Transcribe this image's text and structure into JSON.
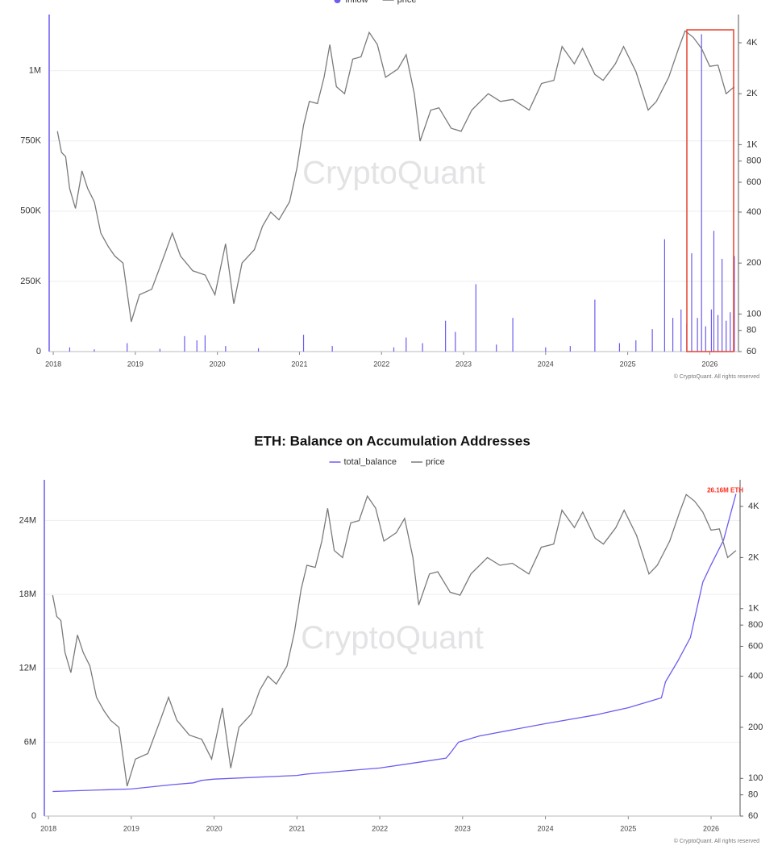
{
  "chart_data": [
    {
      "type": "combo",
      "series": [
        {
          "name": "inflow",
          "color": "#6c5cf0",
          "kind": "bar",
          "axis": "y",
          "x": [
            2018.2,
            2018.5,
            2018.9,
            2019.3,
            2019.6,
            2019.75,
            2019.85,
            2020.1,
            2020.5,
            2021.05,
            2021.4,
            2022.15,
            2022.3,
            2022.5,
            2022.78,
            2022.9,
            2023.15,
            2023.4,
            2023.6,
            2024.0,
            2024.3,
            2024.6,
            2024.9,
            2025.1,
            2025.3,
            2025.45,
            2025.55,
            2025.65,
            2025.72,
            2025.78,
            2025.85,
            2025.9,
            2025.95,
            2026.02,
            2026.05,
            2026.1,
            2026.15,
            2026.2,
            2026.25,
            2026.3
          ],
          "values": [
            15000,
            8000,
            30000,
            10000,
            55000,
            40000,
            58000,
            20000,
            12000,
            60000,
            20000,
            15000,
            50000,
            30000,
            110000,
            70000,
            240000,
            25000,
            120000,
            15000,
            20000,
            185000,
            30000,
            40000,
            80000,
            400000,
            120000,
            150000,
            100000,
            350000,
            120000,
            1130000,
            90000,
            150000,
            430000,
            130000,
            330000,
            110000,
            140000,
            340000
          ]
        },
        {
          "name": "price",
          "color": "#7a7a7a",
          "kind": "line",
          "axis": "y2",
          "x": [
            2018.05,
            2018.1,
            2018.15,
            2018.2,
            2018.27,
            2018.35,
            2018.42,
            2018.5,
            2018.58,
            2018.67,
            2018.75,
            2018.85,
            2018.95,
            2019.05,
            2019.2,
            2019.35,
            2019.45,
            2019.55,
            2019.7,
            2019.85,
            2019.97,
            2020.1,
            2020.2,
            2020.3,
            2020.45,
            2020.55,
            2020.65,
            2020.75,
            2020.88,
            2020.97,
            2021.05,
            2021.12,
            2021.22,
            2021.3,
            2021.37,
            2021.45,
            2021.55,
            2021.65,
            2021.75,
            2021.85,
            2021.95,
            2022.05,
            2022.2,
            2022.3,
            2022.4,
            2022.47,
            2022.6,
            2022.7,
            2022.85,
            2022.97,
            2023.1,
            2023.3,
            2023.45,
            2023.6,
            2023.8,
            2023.95,
            2024.1,
            2024.2,
            2024.35,
            2024.45,
            2024.6,
            2024.7,
            2024.85,
            2024.95,
            2025.1,
            2025.25,
            2025.35,
            2025.5,
            2025.62,
            2025.7,
            2025.8,
            2025.9,
            2026.0,
            2026.1,
            2026.2,
            2026.3
          ],
          "values": [
            1200,
            900,
            850,
            550,
            420,
            700,
            550,
            460,
            300,
            250,
            220,
            200,
            90,
            130,
            140,
            220,
            300,
            220,
            180,
            170,
            130,
            260,
            115,
            200,
            240,
            330,
            400,
            360,
            460,
            730,
            1300,
            1800,
            1750,
            2500,
            3900,
            2200,
            2000,
            3200,
            3300,
            4600,
            3900,
            2500,
            2800,
            3400,
            2000,
            1050,
            1600,
            1650,
            1250,
            1200,
            1600,
            2000,
            1800,
            1850,
            1600,
            2300,
            2400,
            3800,
            3000,
            3700,
            2600,
            2400,
            3000,
            3800,
            2700,
            1600,
            1800,
            2500,
            3700,
            4700,
            4300,
            3700,
            2900,
            2950,
            2000,
            2200
          ]
        }
      ],
      "xlim": [
        2017.95,
        2026.35
      ],
      "xticks": [
        2018,
        2019,
        2020,
        2021,
        2022,
        2023,
        2024,
        2025,
        2026
      ],
      "ylim": [
        0,
        1200000
      ],
      "yticks": [
        0,
        {
          "value": 250000,
          "label": "250K"
        },
        {
          "value": 500000,
          "label": "500K"
        },
        {
          "value": 750000,
          "label": "750K"
        },
        {
          "value": 1000000,
          "label": "1M"
        }
      ],
      "y2lim": [
        60,
        5870
      ],
      "y2scale": "log",
      "y2ticks": [
        60,
        80,
        100,
        200,
        400,
        600,
        800,
        {
          "value": 1000,
          "label": "1K"
        },
        {
          "value": 2000,
          "label": "2K"
        },
        {
          "value": 4000,
          "label": "4K"
        }
      ],
      "grid": true,
      "watermark": "CryptoQuant",
      "footer": "© CryptoQuant. All rights reserved"
    },
    {
      "type": "combo",
      "title": "ETH: Balance on Accumulation Addresses",
      "series": [
        {
          "name": "total_balance",
          "color": "#6c5cf0",
          "kind": "line",
          "axis": "y",
          "x": [
            2018.05,
            2019.0,
            2019.5,
            2019.75,
            2019.85,
            2020.0,
            2021.0,
            2021.1,
            2022.0,
            2022.5,
            2022.8,
            2022.85,
            2022.95,
            2023.2,
            2024.0,
            2024.6,
            2025.0,
            2025.4,
            2025.45,
            2025.6,
            2025.75,
            2025.9,
            2026.0,
            2026.15,
            2026.3
          ],
          "values": [
            2000000,
            2200000,
            2550000,
            2700000,
            2900000,
            3000000,
            3300000,
            3400000,
            3900000,
            4400000,
            4700000,
            5100000,
            6000000,
            6500000,
            7500000,
            8200000,
            8800000,
            9600000,
            10900000,
            12600000,
            14500000,
            19000000,
            20400000,
            22400000,
            26160000
          ]
        },
        {
          "name": "price",
          "color": "#7a7a7a",
          "kind": "line",
          "axis": "y2",
          "x": [
            2018.05,
            2018.1,
            2018.15,
            2018.2,
            2018.27,
            2018.35,
            2018.42,
            2018.5,
            2018.58,
            2018.67,
            2018.75,
            2018.85,
            2018.95,
            2019.05,
            2019.2,
            2019.35,
            2019.45,
            2019.55,
            2019.7,
            2019.85,
            2019.97,
            2020.1,
            2020.2,
            2020.3,
            2020.45,
            2020.55,
            2020.65,
            2020.75,
            2020.88,
            2020.97,
            2021.05,
            2021.12,
            2021.22,
            2021.3,
            2021.37,
            2021.45,
            2021.55,
            2021.65,
            2021.75,
            2021.85,
            2021.95,
            2022.05,
            2022.2,
            2022.3,
            2022.4,
            2022.47,
            2022.6,
            2022.7,
            2022.85,
            2022.97,
            2023.1,
            2023.3,
            2023.45,
            2023.6,
            2023.8,
            2023.95,
            2024.1,
            2024.2,
            2024.35,
            2024.45,
            2024.6,
            2024.7,
            2024.85,
            2024.95,
            2025.1,
            2025.25,
            2025.35,
            2025.5,
            2025.62,
            2025.7,
            2025.8,
            2025.9,
            2026.0,
            2026.1,
            2026.2,
            2026.3
          ],
          "values": [
            1200,
            900,
            850,
            550,
            420,
            700,
            550,
            460,
            300,
            250,
            220,
            200,
            90,
            130,
            140,
            220,
            300,
            220,
            180,
            170,
            130,
            260,
            115,
            200,
            240,
            330,
            400,
            360,
            460,
            730,
            1300,
            1800,
            1750,
            2500,
            3900,
            2200,
            2000,
            3200,
            3300,
            4600,
            3900,
            2500,
            2800,
            3400,
            2000,
            1050,
            1600,
            1650,
            1250,
            1200,
            1600,
            2000,
            1800,
            1850,
            1600,
            2300,
            2400,
            3800,
            3000,
            3700,
            2600,
            2400,
            3000,
            3800,
            2700,
            1600,
            1800,
            2500,
            3700,
            4700,
            4300,
            3700,
            2900,
            2950,
            2000,
            2200
          ]
        }
      ],
      "annotation": "26.16M ETH",
      "annotation_color": "#ff2a1a",
      "xlim": [
        2017.95,
        2026.35
      ],
      "xticks": [
        2018,
        2019,
        2020,
        2021,
        2022,
        2023,
        2024,
        2025,
        2026
      ],
      "ylim": [
        0,
        27300000
      ],
      "yticks": [
        0,
        {
          "value": 6000000,
          "label": "6M"
        },
        {
          "value": 12000000,
          "label": "12M"
        },
        {
          "value": 18000000,
          "label": "18M"
        },
        {
          "value": 24000000,
          "label": "24M"
        }
      ],
      "y2lim": [
        60,
        5740
      ],
      "y2scale": "log",
      "y2ticks": [
        60,
        80,
        100,
        200,
        400,
        600,
        800,
        {
          "value": 1000,
          "label": "1K"
        },
        {
          "value": 2000,
          "label": "2K"
        },
        {
          "value": 4000,
          "label": "4K"
        }
      ],
      "grid": true,
      "watermark": "CryptoQuant",
      "footer": "© CryptoQuant. All rights reserved"
    }
  ]
}
